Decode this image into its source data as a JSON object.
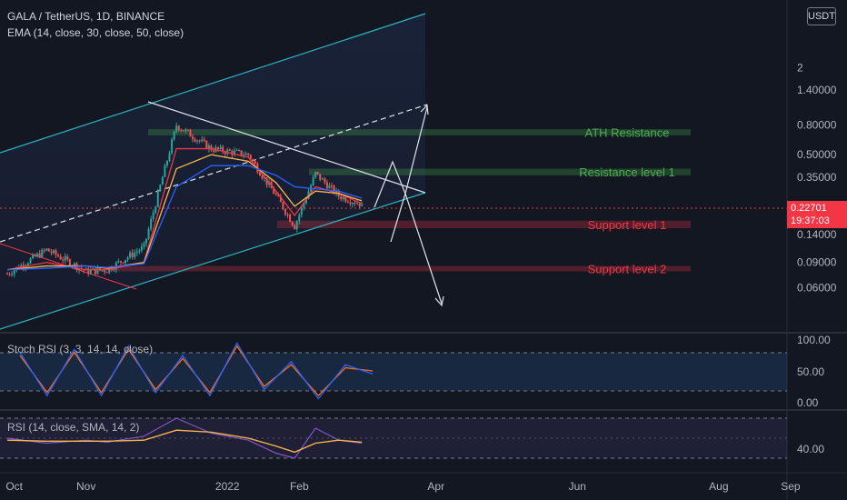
{
  "header": {
    "symbol_line": "GALA / TetherUS, 1D, BINANCE",
    "ema_line": "EMA (14, close, 30, close, 50, close)"
  },
  "currency_button": "USDT",
  "last_price": {
    "value": "0.22701",
    "countdown": "19:37:03"
  },
  "price_axis": {
    "scale": "log",
    "ticks": [
      "2",
      "1.40000",
      "0.80000",
      "0.50000",
      "0.35000",
      "0.14000",
      "0.09000",
      "0.06000"
    ]
  },
  "time_axis": {
    "ticks": [
      "Oct",
      "Nov",
      "2022",
      "Feb",
      "Apr",
      "Jun",
      "Aug",
      "Sep"
    ]
  },
  "zones": [
    {
      "label": "ATH Resistance",
      "kind": "resistance",
      "color": "#4caf50"
    },
    {
      "label": "Resistance level 1",
      "kind": "resistance",
      "color": "#4caf50"
    },
    {
      "label": "Support level 1",
      "kind": "support",
      "color": "#f23645"
    },
    {
      "label": "Support level 2",
      "kind": "support",
      "color": "#f23645"
    }
  ],
  "indicators": {
    "stoch": {
      "title": "Stoch RSI (3, 3, 14, 14, close)",
      "ticks": [
        "100.00",
        "50.00",
        "0.00"
      ]
    },
    "rsi": {
      "title": "RSI (14, close, SMA, 14, 2)",
      "ticks": [
        "40.00"
      ]
    }
  },
  "colors": {
    "background": "#131722",
    "up": "#26a69a",
    "down": "#ef5350",
    "channel": "#2bb3c0",
    "ema14": "#f23645",
    "ema30": "#ffb74d",
    "ema50": "#2962ff",
    "stoch_k": "#2962ff",
    "stoch_d": "#ff6d00",
    "rsi": "#7e57c2",
    "rsi_ma": "#ffb74d"
  },
  "chart_data": [
    {
      "type": "candlestick",
      "title": "GALA / TetherUS, 1D, BINANCE",
      "y_scale": "log",
      "x": [
        "2021-09-28",
        "2021-10-15",
        "2021-11-01",
        "2021-11-10",
        "2021-11-26",
        "2021-12-10",
        "2021-12-25",
        "2022-01-10",
        "2022-01-22",
        "2022-01-30",
        "2022-02-08",
        "2022-02-18",
        "2022-02-28"
      ],
      "close": [
        0.075,
        0.11,
        0.078,
        0.08,
        0.115,
        0.8,
        0.55,
        0.5,
        0.26,
        0.16,
        0.37,
        0.26,
        0.22701
      ],
      "series": [
        {
          "name": "EMA 14",
          "values": [
            0.08,
            0.09,
            0.08,
            0.08,
            0.09,
            0.55,
            0.55,
            0.48,
            0.28,
            0.19,
            0.3,
            0.27,
            0.23
          ]
        },
        {
          "name": "EMA 30",
          "values": [
            0.08,
            0.085,
            0.085,
            0.082,
            0.09,
            0.4,
            0.5,
            0.45,
            0.32,
            0.22,
            0.28,
            0.27,
            0.24
          ]
        },
        {
          "name": "EMA 50",
          "values": [
            0.08,
            0.082,
            0.085,
            0.083,
            0.088,
            0.3,
            0.42,
            0.42,
            0.36,
            0.3,
            0.29,
            0.28,
            0.25
          ]
        }
      ],
      "zones": [
        {
          "name": "ATH Resistance",
          "range": [
            0.68,
            0.75
          ]
        },
        {
          "name": "Resistance level 1",
          "range": [
            0.36,
            0.4
          ]
        },
        {
          "name": "Support level 1",
          "range": [
            0.155,
            0.175
          ]
        },
        {
          "name": "Support level 2",
          "range": [
            0.078,
            0.085
          ]
        }
      ]
    },
    {
      "type": "line",
      "title": "Stoch RSI (3, 3, 14, 14, close)",
      "ylim": [
        0,
        100
      ],
      "series": [
        {
          "name": "K",
          "values": [
            80,
            10,
            85,
            10,
            90,
            15,
            75,
            10,
            95,
            20,
            65,
            5,
            60,
            45
          ]
        },
        {
          "name": "D",
          "values": [
            75,
            15,
            80,
            15,
            85,
            20,
            70,
            15,
            90,
            25,
            60,
            10,
            55,
            50
          ]
        }
      ]
    },
    {
      "type": "line",
      "title": "RSI (14, close, SMA, 14, 2)",
      "series": [
        {
          "name": "RSI",
          "values": [
            50,
            45,
            48,
            46,
            52,
            70,
            55,
            48,
            35,
            30,
            60,
            48,
            45
          ]
        },
        {
          "name": "RSI-based MA",
          "values": [
            48,
            47,
            47,
            47,
            48,
            58,
            56,
            50,
            42,
            36,
            45,
            48,
            46
          ]
        }
      ]
    }
  ]
}
